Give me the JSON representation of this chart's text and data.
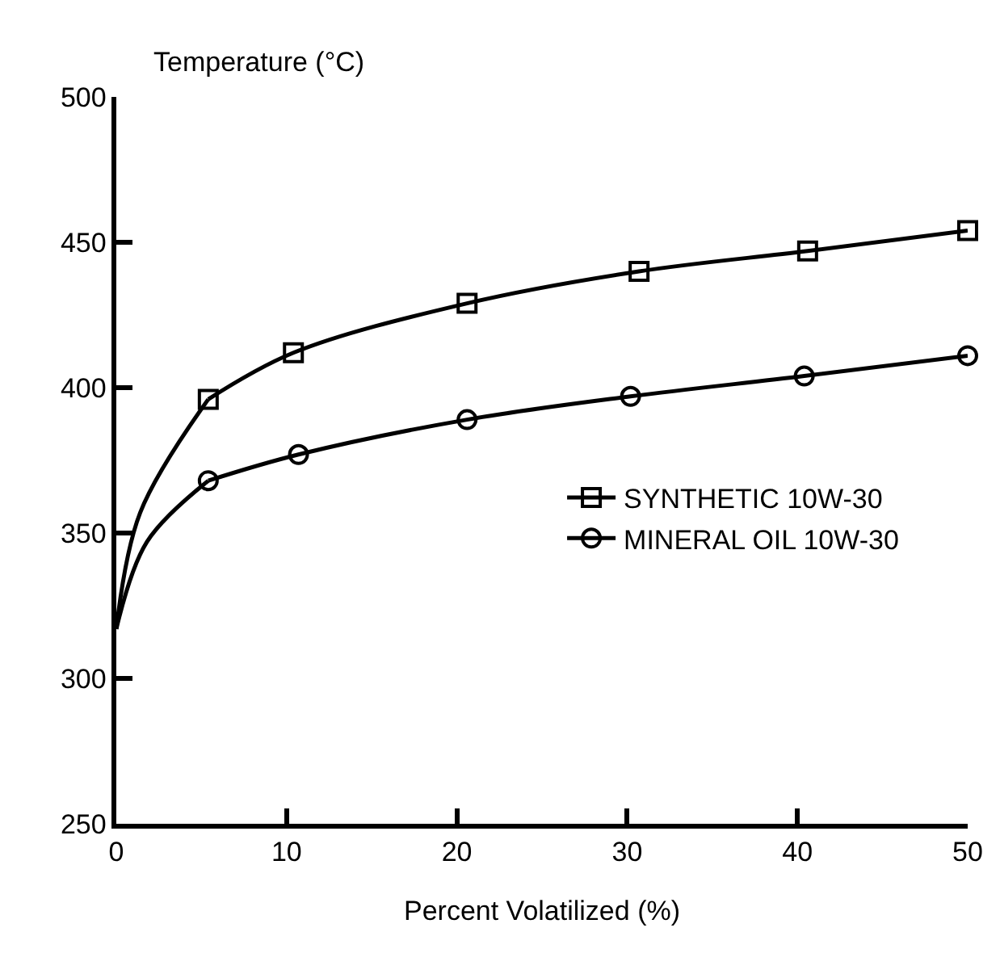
{
  "chart_data": {
    "type": "line",
    "xlabel": "Percent Volatilized (%)",
    "ylabel": "Temperature (°C)",
    "xlim": [
      0,
      50
    ],
    "xticks": [
      0,
      10,
      20,
      30,
      40,
      50
    ],
    "ylim": [
      250,
      500
    ],
    "yticks": [
      250,
      300,
      350,
      400,
      450,
      500
    ],
    "legend": "right",
    "line_style": "solid",
    "series": [
      {
        "name": "SYNTHETIC 10W-30",
        "color": "#000000",
        "marker": "square",
        "x": [
          5.4,
          10.4,
          20.6,
          30.7,
          40.6,
          50
        ],
        "values": [
          396,
          412,
          429,
          440,
          447,
          454
        ]
      },
      {
        "name": "MINERAL OIL 10W-30",
        "color": "#000000",
        "marker": "circle",
        "x": [
          5.4,
          10.7,
          20.6,
          30.2,
          40.4,
          50
        ],
        "values": [
          368,
          377,
          389,
          397,
          404,
          411
        ]
      },
      {
        "color": "#000000",
        "marker": "none",
        "x": [
          0,
          1.4,
          5.4
        ],
        "values": [
          317,
          357,
          396
        ]
      },
      {
        "color": "#000000",
        "marker": "none",
        "x": [
          0,
          1.8,
          5.4
        ],
        "values": [
          317,
          347,
          368
        ]
      }
    ]
  }
}
